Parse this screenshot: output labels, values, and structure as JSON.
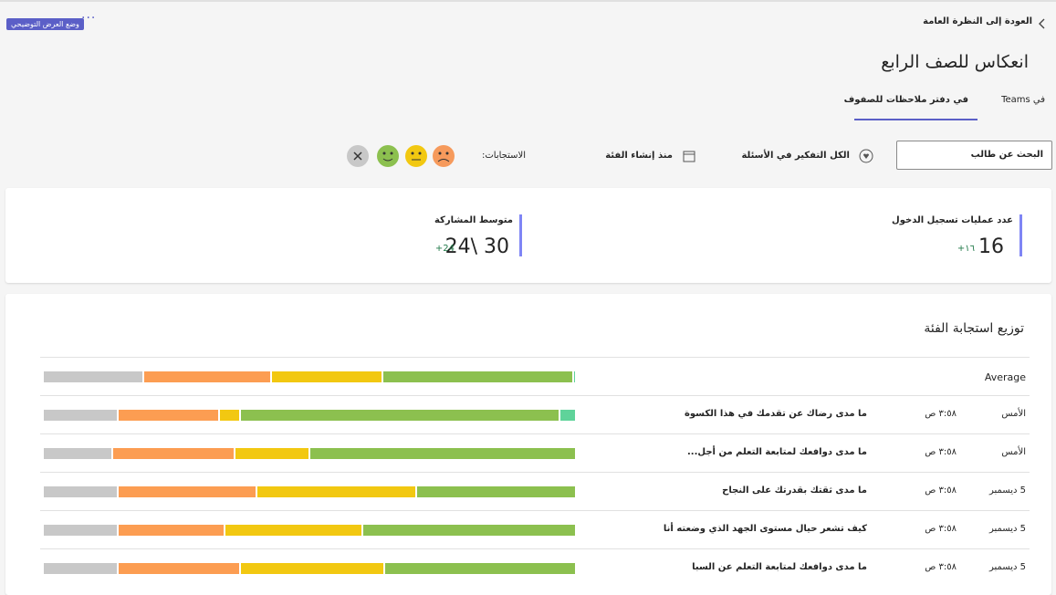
{
  "header": {
    "back_link": "العودة إلى النظرة العامة",
    "title": "انعكاس للصف الرابع",
    "demo_badge": "وضع العرض التوضيحي",
    "tabs": [
      "في Teams",
      "في دفتر ملاحظات للصفوف"
    ]
  },
  "filters": {
    "search_placeholder": "البحث عن طالب",
    "question_filter": "الكل التفكير في الأسئلة",
    "date_filter": "منذ إنشاء الفئة",
    "responses_label": "الاستجابات:"
  },
  "stats": [
    {
      "label": "عدد عمليات تسجيل الدخول",
      "value": "16",
      "change": "+١٦"
    },
    {
      "label": "متوسط المشاركة",
      "value": "24\\ 30",
      "change": "+24"
    }
  ],
  "response_distribution": {
    "title": "توزيع استجابة الفئة",
    "segment_colors": [
      "#5fd39a",
      "#8cc04f",
      "#f2c811",
      "#fc9d52",
      "#c8c8c8"
    ],
    "average": {
      "label": "Average",
      "values": [
        0.5,
        36,
        21,
        24,
        19
      ]
    },
    "rows": [
      {
        "date": "الأمس",
        "time": "٣:٥٨ ص",
        "question": "ما مدى رضاك عن تقدمك في هذا الكسوة",
        "values": [
          3,
          60,
          4,
          19,
          14
        ]
      },
      {
        "date": "الأمس",
        "time": "٣:٥٨ ص",
        "question": "ما مدى دوافعك لمتابعة التعلم من أجل...",
        "values": [
          0,
          50,
          14,
          23,
          13
        ]
      },
      {
        "date": "5 ديسمبر",
        "time": "٣:٥٨ ص",
        "question": "ما مدى ثقتك بقدرتك على النجاح",
        "values": [
          0,
          30,
          30,
          26,
          14
        ]
      },
      {
        "date": "5 ديسمبر",
        "time": "٣:٥٨ ص",
        "question": "كيف تشعر حيال مستوى الجهد الذي وضعته أنا",
        "values": [
          0,
          40,
          26,
          20,
          14
        ]
      },
      {
        "date": "5 ديسمبر",
        "time": "٣:٥٨ ص",
        "question": "ما مدى دوافعك لمتابعة التعلم عن السبا",
        "values": [
          0,
          36,
          27,
          23,
          14
        ]
      }
    ]
  }
}
